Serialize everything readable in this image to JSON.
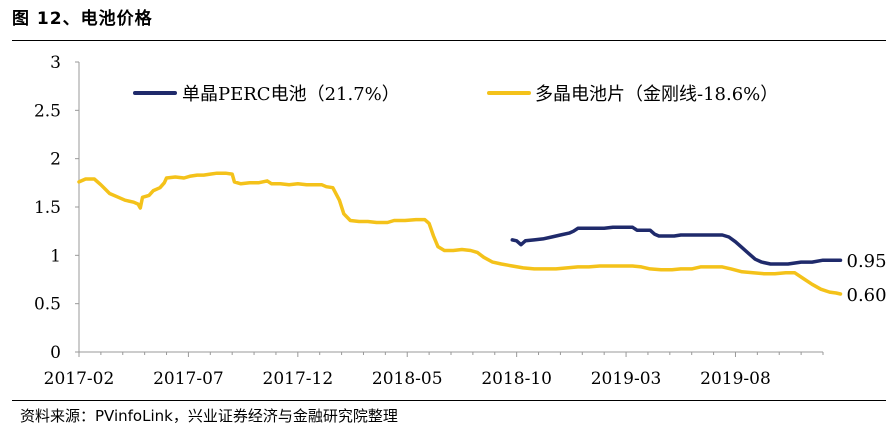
{
  "header": {
    "title": "图 12、电池价格"
  },
  "footer": {
    "source": "资料来源：PVinfoLink，兴业证券经济与金融研究院整理"
  },
  "colors": {
    "mono": "#1f2a6b",
    "multi": "#f4c21a",
    "axis": "#999999"
  },
  "chart_data": {
    "type": "line",
    "title": "电池价格",
    "xlabel": "",
    "ylabel": "",
    "ylim": [
      0,
      3
    ],
    "y_ticks": [
      "0",
      "0.5",
      "1",
      "1.5",
      "2",
      "2.5",
      "3"
    ],
    "x_ticks": [
      "2017-02",
      "2017-07",
      "2017-12",
      "2018-05",
      "2018-10",
      "2019-03",
      "2019-08"
    ],
    "x_range_months": [
      0,
      34
    ],
    "legend_position": "top",
    "series": [
      {
        "name": "单晶PERC电池（21.7%）",
        "color_key": "mono",
        "end_label": "0.95",
        "points": [
          [
            19.8,
            1.16
          ],
          [
            20.0,
            1.15
          ],
          [
            20.2,
            1.11
          ],
          [
            20.4,
            1.15
          ],
          [
            20.8,
            1.16
          ],
          [
            21.2,
            1.17
          ],
          [
            21.6,
            1.19
          ],
          [
            22.0,
            1.21
          ],
          [
            22.4,
            1.23
          ],
          [
            22.6,
            1.25
          ],
          [
            22.8,
            1.28
          ],
          [
            23.5,
            1.28
          ],
          [
            24.0,
            1.28
          ],
          [
            24.4,
            1.29
          ],
          [
            25.0,
            1.29
          ],
          [
            25.3,
            1.29
          ],
          [
            25.5,
            1.26
          ],
          [
            26.1,
            1.26
          ],
          [
            26.3,
            1.22
          ],
          [
            26.5,
            1.2
          ],
          [
            27.2,
            1.2
          ],
          [
            27.5,
            1.21
          ],
          [
            28.1,
            1.21
          ],
          [
            28.8,
            1.21
          ],
          [
            29.4,
            1.21
          ],
          [
            29.7,
            1.19
          ],
          [
            30.0,
            1.14
          ],
          [
            30.3,
            1.08
          ],
          [
            30.6,
            1.02
          ],
          [
            30.9,
            0.96
          ],
          [
            31.2,
            0.93
          ],
          [
            31.6,
            0.91
          ],
          [
            32.0,
            0.91
          ],
          [
            32.4,
            0.91
          ],
          [
            33.0,
            0.93
          ],
          [
            33.5,
            0.93
          ],
          [
            34.0,
            0.95
          ],
          [
            34.5,
            0.95
          ],
          [
            34.8,
            0.95
          ]
        ]
      },
      {
        "name": "多晶电池片（金刚线-18.6%）",
        "color_key": "multi",
        "end_label": "0.60",
        "points": [
          [
            0.0,
            1.76
          ],
          [
            0.3,
            1.79
          ],
          [
            0.7,
            1.79
          ],
          [
            1.0,
            1.73
          ],
          [
            1.4,
            1.64
          ],
          [
            1.8,
            1.6
          ],
          [
            2.1,
            1.57
          ],
          [
            2.5,
            1.55
          ],
          [
            2.7,
            1.53
          ],
          [
            2.8,
            1.49
          ],
          [
            2.9,
            1.6
          ],
          [
            3.2,
            1.62
          ],
          [
            3.4,
            1.67
          ],
          [
            3.7,
            1.7
          ],
          [
            3.9,
            1.75
          ],
          [
            4.0,
            1.8
          ],
          [
            4.4,
            1.81
          ],
          [
            4.8,
            1.8
          ],
          [
            5.1,
            1.82
          ],
          [
            5.4,
            1.83
          ],
          [
            5.7,
            1.83
          ],
          [
            6.0,
            1.84
          ],
          [
            6.3,
            1.85
          ],
          [
            6.7,
            1.85
          ],
          [
            7.0,
            1.84
          ],
          [
            7.1,
            1.76
          ],
          [
            7.4,
            1.74
          ],
          [
            7.8,
            1.75
          ],
          [
            8.2,
            1.75
          ],
          [
            8.6,
            1.77
          ],
          [
            8.8,
            1.74
          ],
          [
            9.2,
            1.74
          ],
          [
            9.6,
            1.73
          ],
          [
            10.0,
            1.74
          ],
          [
            10.4,
            1.73
          ],
          [
            10.8,
            1.73
          ],
          [
            11.1,
            1.73
          ],
          [
            11.3,
            1.71
          ],
          [
            11.6,
            1.7
          ],
          [
            11.9,
            1.57
          ],
          [
            12.1,
            1.43
          ],
          [
            12.4,
            1.36
          ],
          [
            12.8,
            1.35
          ],
          [
            13.2,
            1.35
          ],
          [
            13.6,
            1.34
          ],
          [
            14.1,
            1.34
          ],
          [
            14.4,
            1.36
          ],
          [
            14.9,
            1.36
          ],
          [
            15.4,
            1.37
          ],
          [
            15.8,
            1.37
          ],
          [
            16.0,
            1.33
          ],
          [
            16.2,
            1.2
          ],
          [
            16.4,
            1.09
          ],
          [
            16.7,
            1.05
          ],
          [
            17.1,
            1.05
          ],
          [
            17.5,
            1.06
          ],
          [
            17.9,
            1.05
          ],
          [
            18.2,
            1.03
          ],
          [
            18.5,
            0.98
          ],
          [
            18.9,
            0.93
          ],
          [
            19.3,
            0.91
          ],
          [
            19.8,
            0.89
          ],
          [
            20.3,
            0.87
          ],
          [
            20.8,
            0.86
          ],
          [
            21.3,
            0.86
          ],
          [
            21.8,
            0.86
          ],
          [
            22.3,
            0.87
          ],
          [
            22.8,
            0.88
          ],
          [
            23.3,
            0.88
          ],
          [
            23.8,
            0.89
          ],
          [
            24.3,
            0.89
          ],
          [
            24.8,
            0.89
          ],
          [
            25.3,
            0.89
          ],
          [
            25.7,
            0.88
          ],
          [
            26.1,
            0.86
          ],
          [
            26.6,
            0.85
          ],
          [
            27.1,
            0.85
          ],
          [
            27.5,
            0.86
          ],
          [
            28.0,
            0.86
          ],
          [
            28.4,
            0.88
          ],
          [
            28.9,
            0.88
          ],
          [
            29.4,
            0.88
          ],
          [
            29.8,
            0.86
          ],
          [
            30.3,
            0.83
          ],
          [
            30.8,
            0.82
          ],
          [
            31.3,
            0.81
          ],
          [
            31.8,
            0.81
          ],
          [
            32.3,
            0.82
          ],
          [
            32.7,
            0.82
          ],
          [
            33.1,
            0.76
          ],
          [
            33.5,
            0.7
          ],
          [
            33.9,
            0.65
          ],
          [
            34.3,
            0.62
          ],
          [
            34.6,
            0.61
          ],
          [
            34.8,
            0.6
          ]
        ]
      }
    ]
  }
}
